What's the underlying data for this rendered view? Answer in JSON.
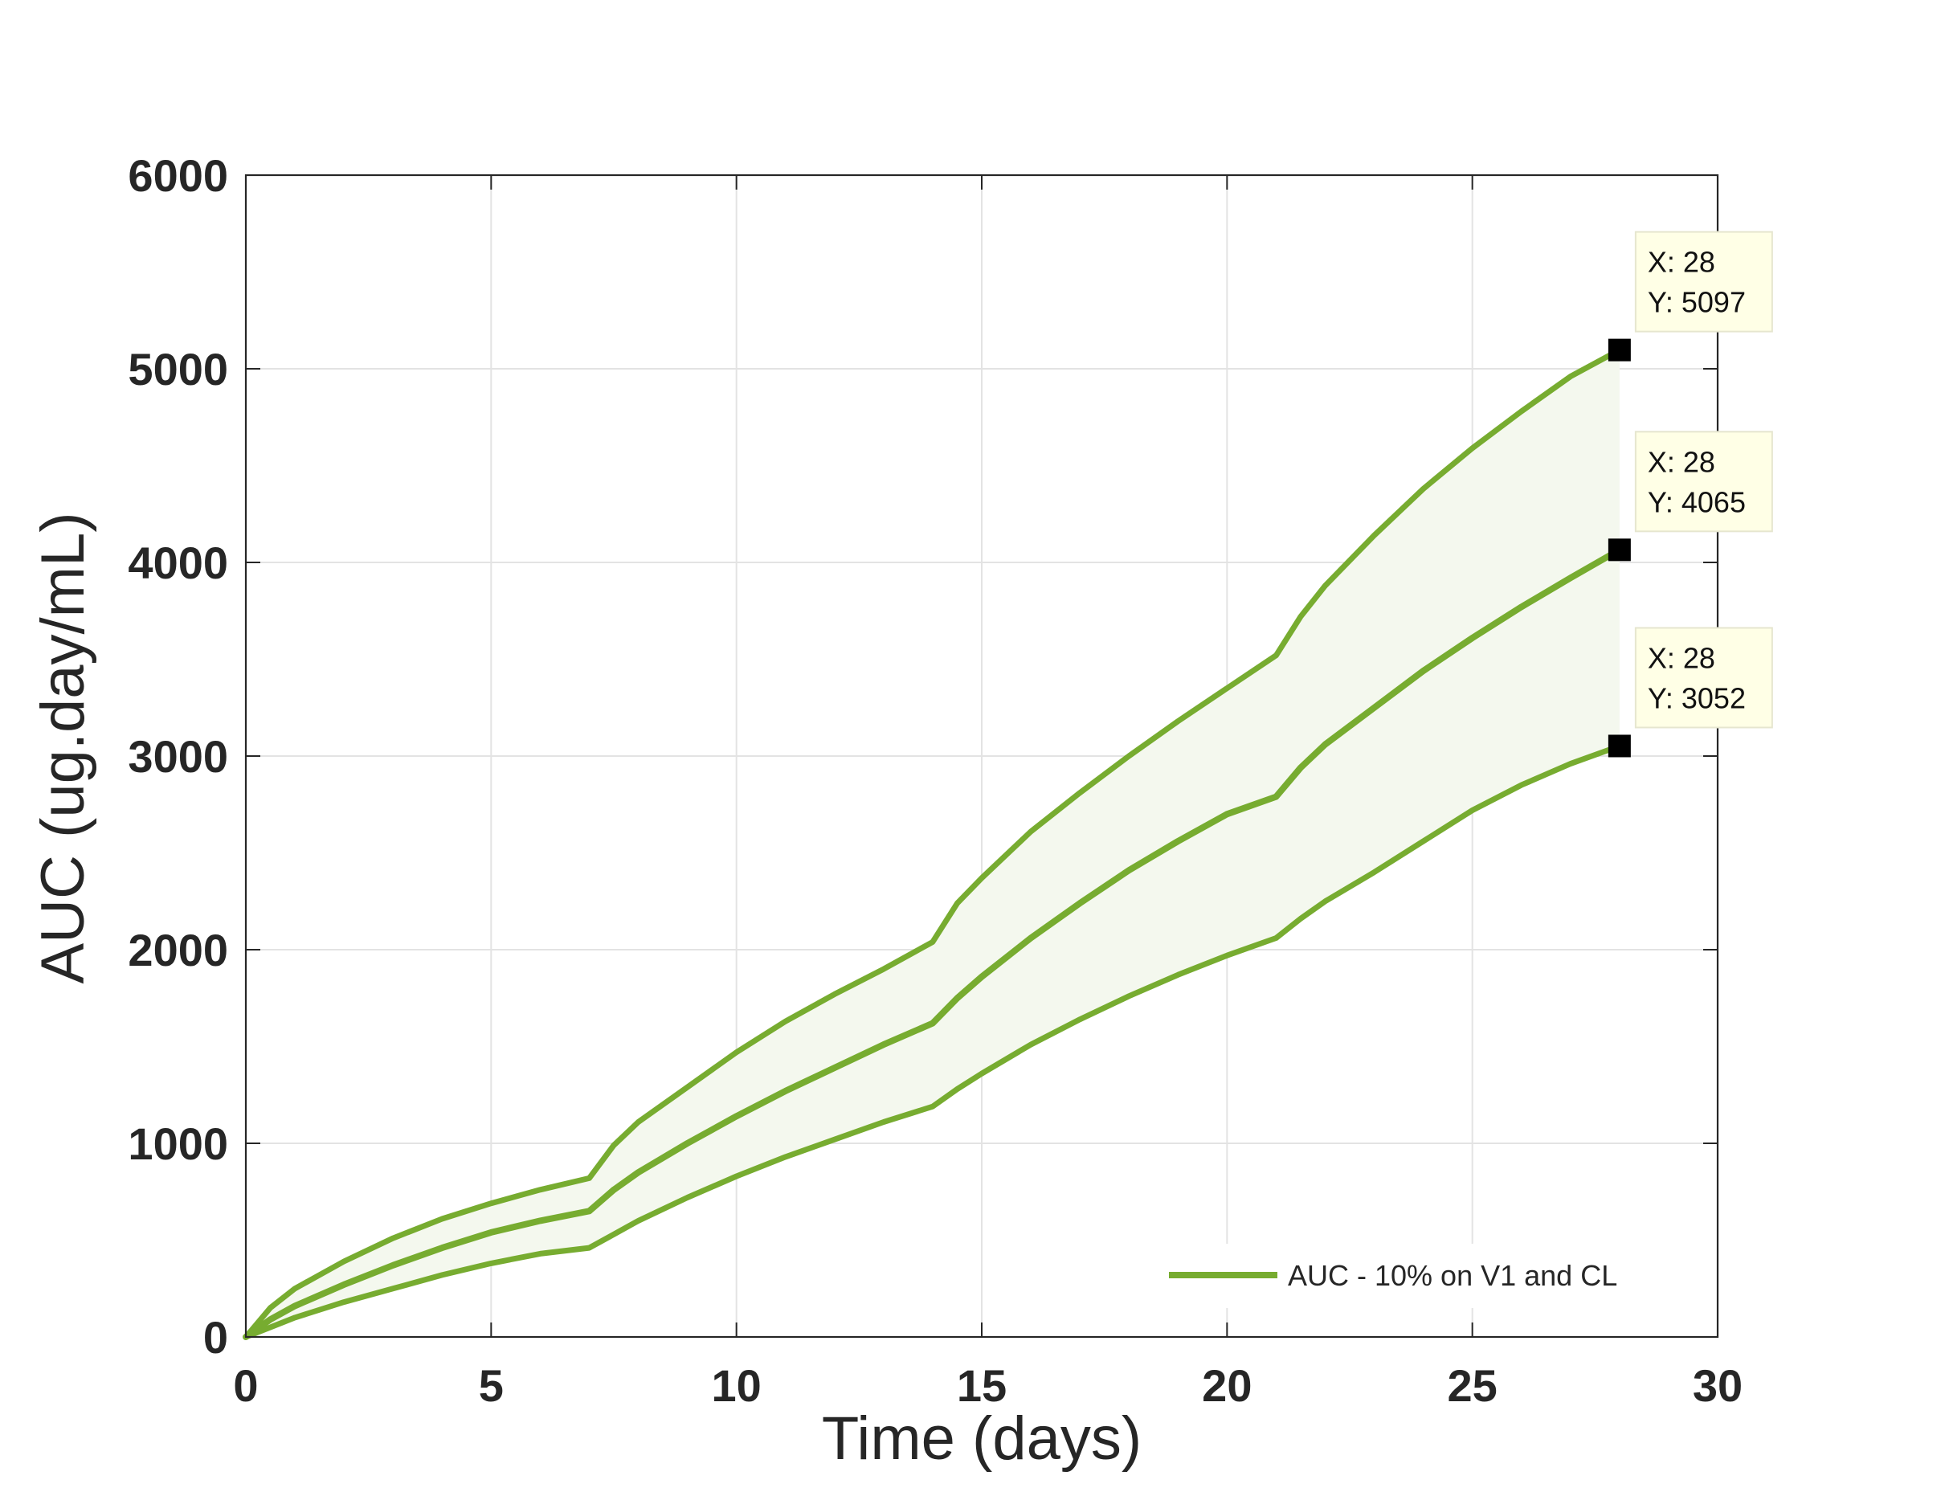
{
  "chart_data": {
    "type": "line",
    "xlabel": "Time (days)",
    "ylabel": "AUC (ug.day/mL)",
    "xlim": [
      0,
      30
    ],
    "ylim": [
      0,
      6000
    ],
    "xticks": [
      0,
      5,
      10,
      15,
      20,
      25,
      30
    ],
    "yticks": [
      0,
      1000,
      2000,
      3000,
      4000,
      5000,
      6000
    ],
    "grid": true,
    "legend": {
      "position": "bottom-right",
      "entries": [
        "AUC - 10% on V1 and CL"
      ]
    },
    "line_color": "#77ac30",
    "band_fill": "#f4f8ee",
    "shaded_band_between": [
      "upper",
      "lower"
    ],
    "series": [
      {
        "id": "upper",
        "x": [
          0,
          0.5,
          1,
          2,
          3,
          4,
          5,
          6,
          7,
          7.5,
          8,
          9,
          10,
          11,
          12,
          13,
          14,
          14.5,
          15,
          16,
          17,
          18,
          19,
          20,
          21,
          21.5,
          22,
          23,
          24,
          25,
          26,
          27,
          28
        ],
        "y": [
          0,
          150,
          250,
          390,
          510,
          610,
          690,
          760,
          820,
          990,
          1110,
          1290,
          1470,
          1630,
          1770,
          1900,
          2040,
          2240,
          2370,
          2610,
          2810,
          3000,
          3180,
          3350,
          3520,
          3720,
          3880,
          4140,
          4380,
          4590,
          4780,
          4960,
          5097
        ]
      },
      {
        "id": "middle",
        "x": [
          0,
          0.5,
          1,
          2,
          3,
          4,
          5,
          6,
          7,
          7.5,
          8,
          9,
          10,
          11,
          12,
          13,
          14,
          14.5,
          15,
          16,
          17,
          18,
          19,
          20,
          21,
          21.5,
          22,
          23,
          24,
          25,
          26,
          27,
          28
        ],
        "y": [
          0,
          90,
          160,
          270,
          370,
          460,
          540,
          600,
          650,
          760,
          850,
          1000,
          1140,
          1270,
          1390,
          1510,
          1620,
          1750,
          1860,
          2060,
          2240,
          2410,
          2560,
          2700,
          2790,
          2940,
          3060,
          3250,
          3440,
          3610,
          3770,
          3920,
          4065
        ]
      },
      {
        "id": "lower",
        "x": [
          0,
          0.5,
          1,
          2,
          3,
          4,
          5,
          6,
          7,
          7.5,
          8,
          9,
          10,
          11,
          12,
          13,
          14,
          14.5,
          15,
          16,
          17,
          18,
          19,
          20,
          21,
          21.5,
          22,
          23,
          24,
          25,
          26,
          27,
          28
        ],
        "y": [
          0,
          50,
          100,
          180,
          250,
          320,
          380,
          430,
          460,
          530,
          600,
          720,
          830,
          930,
          1020,
          1110,
          1190,
          1280,
          1360,
          1510,
          1640,
          1760,
          1870,
          1970,
          2060,
          2160,
          2250,
          2400,
          2560,
          2720,
          2850,
          2960,
          3052
        ]
      }
    ],
    "datatips": [
      {
        "x": 28,
        "y": 5097,
        "line1": "X: 28",
        "line2": "Y: 5097"
      },
      {
        "x": 28,
        "y": 4065,
        "line1": "X: 28",
        "line2": "Y: 4065"
      },
      {
        "x": 28,
        "y": 3052,
        "line1": "X: 28",
        "line2": "Y: 3052"
      }
    ]
  }
}
